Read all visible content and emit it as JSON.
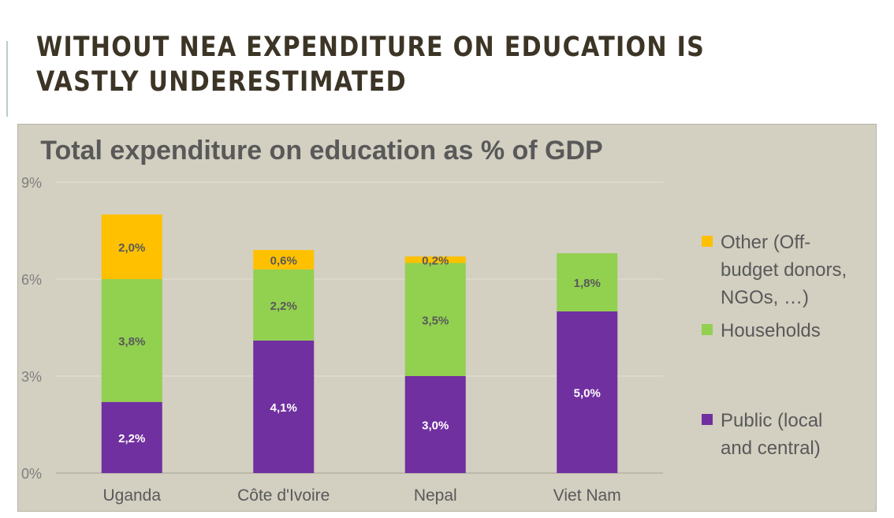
{
  "slide": {
    "title": "WITHOUT NEA EXPENDITURE ON EDUCATION IS VASTLY UNDERESTIMATED"
  },
  "chart_data": {
    "type": "bar",
    "stacked": true,
    "title": "Total expenditure on education as % of GDP",
    "xlabel": "",
    "ylabel": "",
    "ylim": [
      0,
      9
    ],
    "yticks": [
      "0%",
      "3%",
      "6%",
      "9%"
    ],
    "grid": true,
    "legend_position": "right",
    "categories": [
      "Uganda",
      "Côte d'Ivoire",
      "Nepal",
      "Viet Nam"
    ],
    "series": [
      {
        "name": "Public (local and central)",
        "color": "#7030a0",
        "values": [
          2.2,
          4.1,
          3.0,
          5.0
        ],
        "labels": [
          "2,2%",
          "4,1%",
          "3,0%",
          "5,0%"
        ],
        "label_color": "#ffffff"
      },
      {
        "name": "Households",
        "color": "#92d050",
        "values": [
          3.8,
          2.2,
          3.5,
          1.8
        ],
        "labels": [
          "3,8%",
          "2,2%",
          "3,5%",
          "1,8%"
        ],
        "label_color": "#595959"
      },
      {
        "name": "Other (Off-budget donors, NGOs, …)",
        "color": "#ffc000",
        "values": [
          2.0,
          0.6,
          0.2,
          null
        ],
        "labels": [
          "2,0%",
          "0,6%",
          "0,2%",
          null
        ],
        "label_color": "#595959"
      }
    ],
    "legend_order": [
      "Other (Off-budget donors, NGOs, …)",
      "Households",
      "Public (local and central)"
    ],
    "legend_lines": [
      [
        "Other (Off-",
        "budget donors,",
        "NGOs, …)"
      ],
      [
        "Households"
      ],
      [
        "Public (local",
        "and central)"
      ]
    ]
  }
}
